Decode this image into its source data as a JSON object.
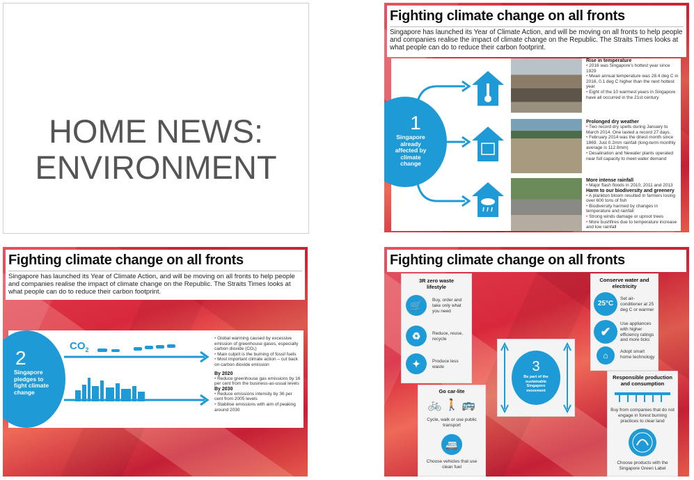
{
  "slide1": {
    "line1": "HOME NEWS:",
    "line2": "ENVIRONMENT"
  },
  "common": {
    "title": "Fighting climate change on all fronts",
    "intro": "Singapore has launched its Year of Climate Action, and will be moving on all fronts to help people and companies realise the impact of climate change on the Republic. The Straits Times looks at what people can do to reduce their carbon footprint."
  },
  "slide2": {
    "number": "1",
    "circle_text": "Singapore already affected by climate change",
    "sections": [
      {
        "heading": "Rise in temperature",
        "bullets": [
          "2016 was Singapore's hottest year since 1929",
          "Mean annual temperature was 28.4 deg C in 2016, 0.1 deg C higher than the next hottest year",
          "Eight of the 10 warmest years in Singapore have all occurred in the 21st century"
        ]
      },
      {
        "heading": "Prolonged dry weather",
        "bullets": [
          "Two record dry spells during January to March 2014. One lasted a record 27 days.",
          "February 2014 was the driest month since 1869. Just 0.2mm rainfall (long-term monthly average is 112.8mm)",
          "Desalination and Newater plants operated near full capacity to meet water demand"
        ]
      },
      {
        "heading": "More intense rainfall",
        "bullets": [
          "Major flash floods in 2010, 2011 and 2013"
        ]
      },
      {
        "heading": "Harm to our biodiversity and greenery",
        "bullets": [
          "A plankton bloom resulted in farmers losing over 600 tons of fish",
          "Biodiversity harmed by changes in temperature and rainfall",
          "Strong winds damage or uproot trees",
          "More bushfires due to temperature increase and low rainfall"
        ]
      }
    ]
  },
  "slide3": {
    "number": "2",
    "circle_text": "Singapore pledges to fight climate change",
    "co2": "CO",
    "co2_sub": "2",
    "bullets": [
      "Global warming caused by excessive emission of greenhouse gases, especially carbon dioxide (CO₂)",
      "Main culprit is the burning of fossil fuels",
      "Most important climate action – cut back on carbon dioxide emission"
    ],
    "by2020": "By 2020",
    "bullets2020": [
      "Reduce greenhouse gas emissions by 16 per cent from the business-as-usual levels"
    ],
    "by2030": "By 2030",
    "bullets2030": [
      "Reduce emissions intensity by 36 per cent from 2005 levels",
      "Stabilise emissions with aim of peaking around 2030"
    ]
  },
  "slide4": {
    "zero_waste": {
      "title": "3R zero waste lifestyle",
      "items": [
        "Buy, order and take only what you need",
        "Reduce, reuse, recycle",
        "Produce less waste"
      ]
    },
    "car_lite": {
      "title": "Go car-lite",
      "items": [
        "Cycle, walk or use public transport",
        "Choose vehicles that use clean fuel"
      ]
    },
    "center": {
      "number": "3",
      "text": "Be part of the sustainable Singapore movement"
    },
    "conserve": {
      "title": "Conserve water and electricity",
      "temp": "25°C",
      "items": [
        "Set air-conditioner at 25 deg C or warmer",
        "Use appliances with higher efficiency ratings and more ticks",
        "Adopt smart home technology"
      ]
    },
    "responsible": {
      "title": "Responsible production and consumption",
      "items": [
        "Buy from companies that do not engage in forest burning practices to clear land",
        "Choose products with the Singapore Green Label"
      ]
    }
  }
}
